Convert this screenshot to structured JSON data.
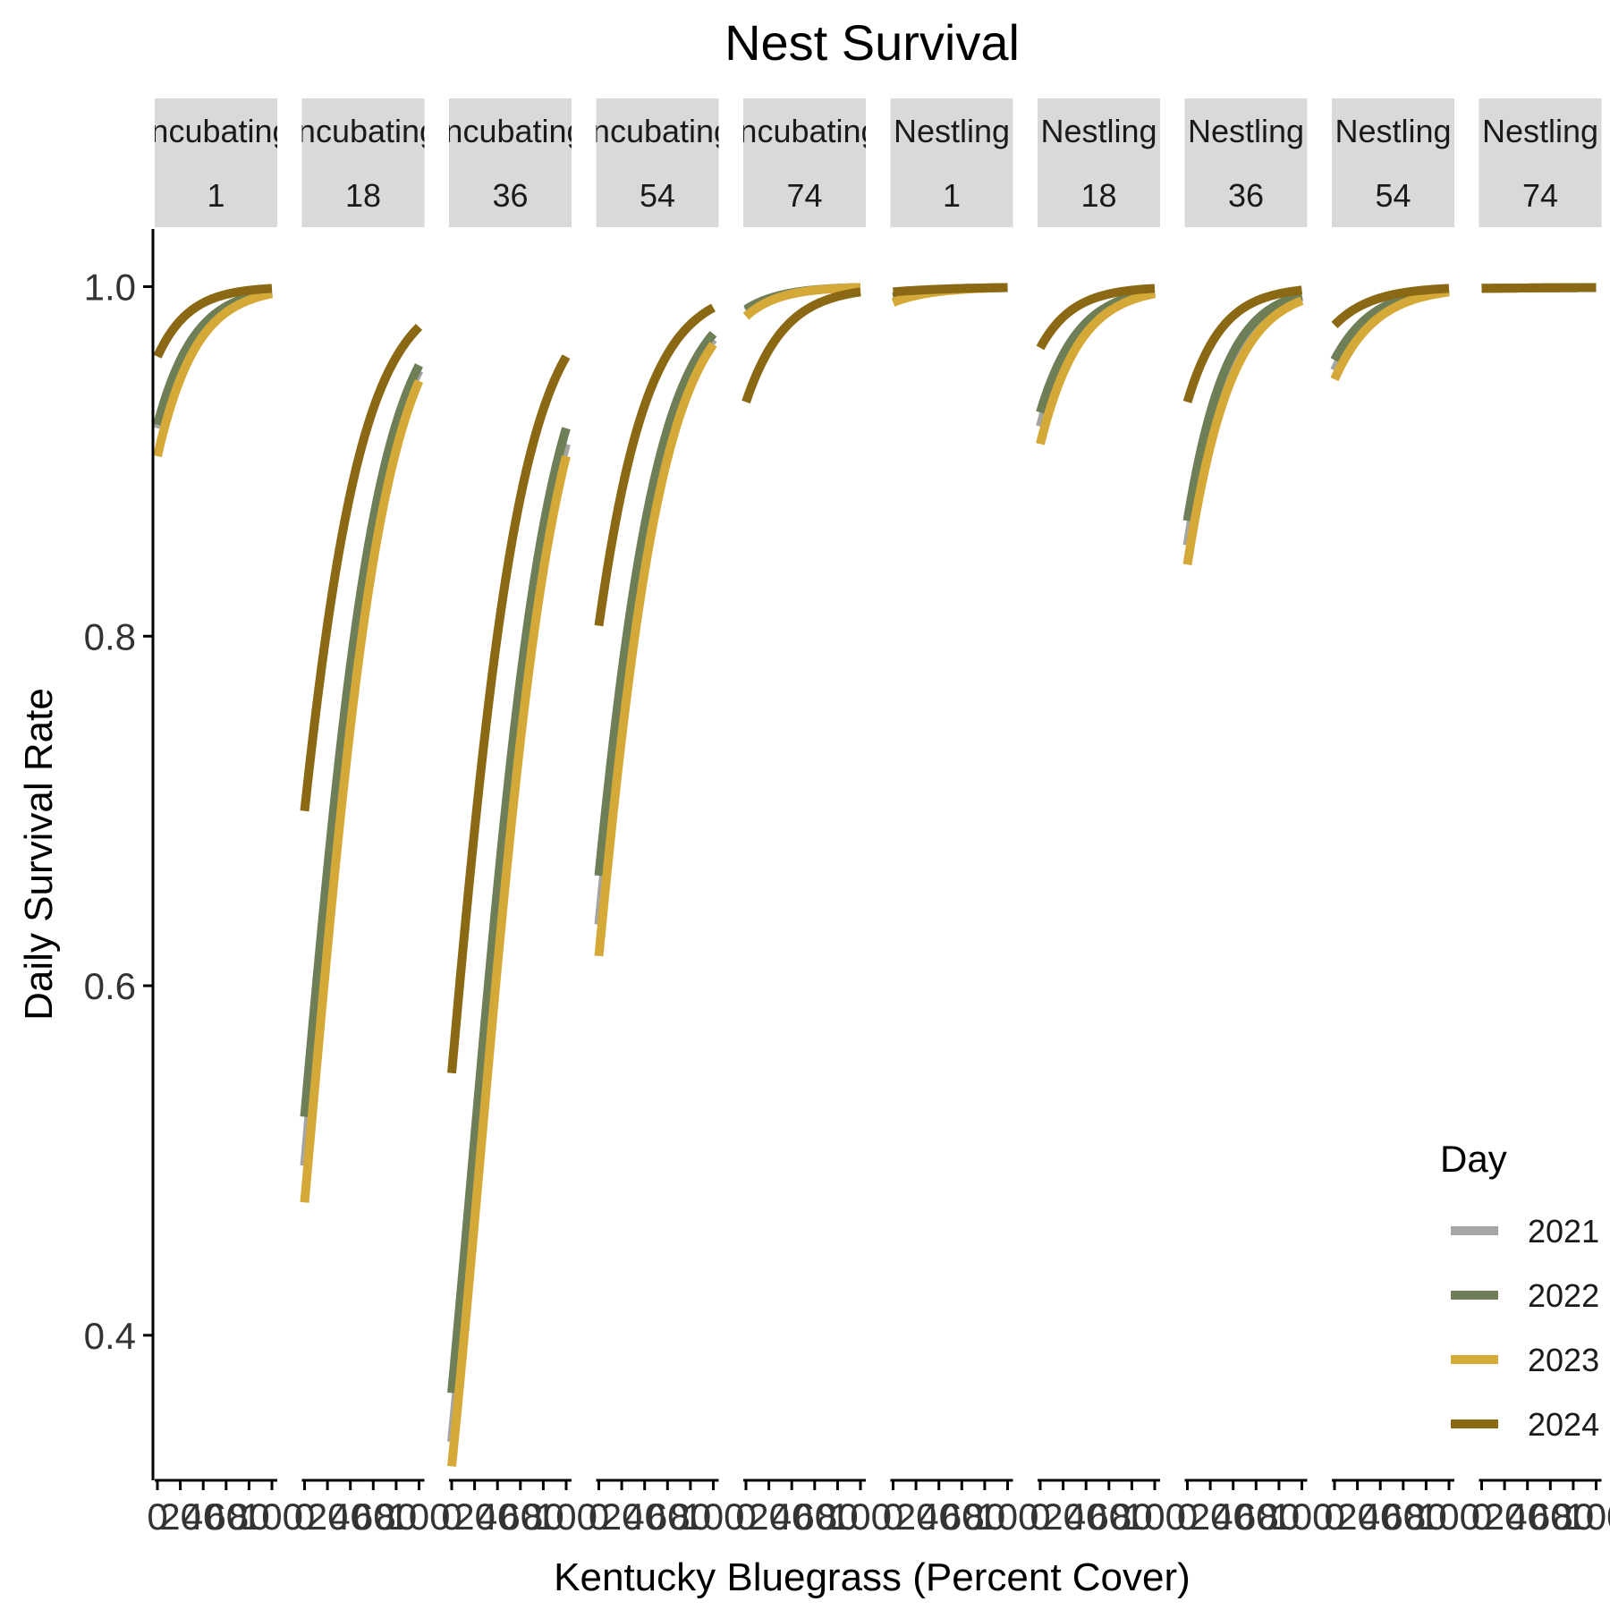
{
  "chart_data": {
    "type": "line",
    "title": "Nest Survival",
    "xlabel": "Kentucky Bluegrass (Percent Cover)",
    "ylabel": "Daily Survival Rate",
    "ylim": [
      0.317,
      1.033
    ],
    "yticks": [
      "0.4",
      "0.6",
      "0.8",
      "1.0"
    ],
    "xlim": [
      0,
      100
    ],
    "xtick_labels": [
      "0",
      "20",
      "40",
      "60",
      "80",
      "100"
    ],
    "grid": false,
    "legend": {
      "title": "Day",
      "placement": "right-bottom"
    },
    "series_colors": {
      "2021": "#A5A5A3",
      "2022": "#6E7F58",
      "2023": "#D4A938",
      "2024": "#8B6914"
    },
    "panels": [
      {
        "label_top": "Incubating",
        "label_bottom": "1",
        "series": [
          {
            "name": "2021",
            "start": 0.919,
            "end": 0.997
          },
          {
            "name": "2022",
            "start": 0.921,
            "end": 0.997
          },
          {
            "name": "2023",
            "start": 0.903,
            "end": 0.996
          },
          {
            "name": "2024",
            "start": 0.96,
            "end": 0.999
          }
        ]
      },
      {
        "label_top": "Incubating",
        "label_bottom": "18",
        "series": [
          {
            "name": "2021",
            "start": 0.497,
            "end": 0.952
          },
          {
            "name": "2022",
            "start": 0.525,
            "end": 0.955
          },
          {
            "name": "2023",
            "start": 0.476,
            "end": 0.946
          },
          {
            "name": "2024",
            "start": 0.7,
            "end": 0.977
          }
        ]
      },
      {
        "label_top": "Incubating",
        "label_bottom": "36",
        "series": [
          {
            "name": "2021",
            "start": 0.339,
            "end": 0.91
          },
          {
            "name": "2022",
            "start": 0.367,
            "end": 0.919
          },
          {
            "name": "2023",
            "start": 0.325,
            "end": 0.903
          },
          {
            "name": "2024",
            "start": 0.55,
            "end": 0.96
          }
        ]
      },
      {
        "label_top": "Incubating",
        "label_bottom": "54",
        "series": [
          {
            "name": "2021",
            "start": 0.635,
            "end": 0.97
          },
          {
            "name": "2022",
            "start": 0.663,
            "end": 0.973
          },
          {
            "name": "2023",
            "start": 0.617,
            "end": 0.967
          },
          {
            "name": "2024",
            "start": 0.806,
            "end": 0.988
          }
        ]
      },
      {
        "label_top": "Incubating",
        "label_bottom": "74",
        "series": [
          {
            "name": "2021",
            "start": 0.986,
            "end": 1.0
          },
          {
            "name": "2022",
            "start": 0.987,
            "end": 1.0
          },
          {
            "name": "2023",
            "start": 0.983,
            "end": 1.0
          },
          {
            "name": "2024",
            "start": 0.934,
            "end": 0.997
          }
        ]
      },
      {
        "label_top": "Nestling",
        "label_bottom": "1",
        "series": [
          {
            "name": "2021",
            "start": 0.994,
            "end": 1.0
          },
          {
            "name": "2022",
            "start": 0.994,
            "end": 1.0
          },
          {
            "name": "2023",
            "start": 0.991,
            "end": 1.0
          },
          {
            "name": "2024",
            "start": 0.997,
            "end": 1.0
          }
        ]
      },
      {
        "label_top": "Nestling",
        "label_bottom": "18",
        "series": [
          {
            "name": "2021",
            "start": 0.92,
            "end": 0.997
          },
          {
            "name": "2022",
            "start": 0.928,
            "end": 0.997
          },
          {
            "name": "2023",
            "start": 0.91,
            "end": 0.996
          },
          {
            "name": "2024",
            "start": 0.965,
            "end": 0.999
          }
        ]
      },
      {
        "label_top": "Nestling",
        "label_bottom": "36",
        "series": [
          {
            "name": "2021",
            "start": 0.852,
            "end": 0.994
          },
          {
            "name": "2022",
            "start": 0.866,
            "end": 0.995
          },
          {
            "name": "2023",
            "start": 0.841,
            "end": 0.992
          },
          {
            "name": "2024",
            "start": 0.934,
            "end": 0.998
          }
        ]
      },
      {
        "label_top": "Nestling",
        "label_bottom": "54",
        "series": [
          {
            "name": "2021",
            "start": 0.952,
            "end": 0.998
          },
          {
            "name": "2022",
            "start": 0.958,
            "end": 0.998
          },
          {
            "name": "2023",
            "start": 0.947,
            "end": 0.997
          },
          {
            "name": "2024",
            "start": 0.978,
            "end": 0.999
          }
        ]
      },
      {
        "label_top": "Nestling",
        "label_bottom": "74",
        "series": [
          {
            "name": "2021",
            "start": 0.999,
            "end": 1.0
          },
          {
            "name": "2022",
            "start": 0.999,
            "end": 1.0
          },
          {
            "name": "2023",
            "start": 0.999,
            "end": 1.0
          },
          {
            "name": "2024",
            "start": 0.999,
            "end": 1.0
          }
        ]
      }
    ]
  }
}
